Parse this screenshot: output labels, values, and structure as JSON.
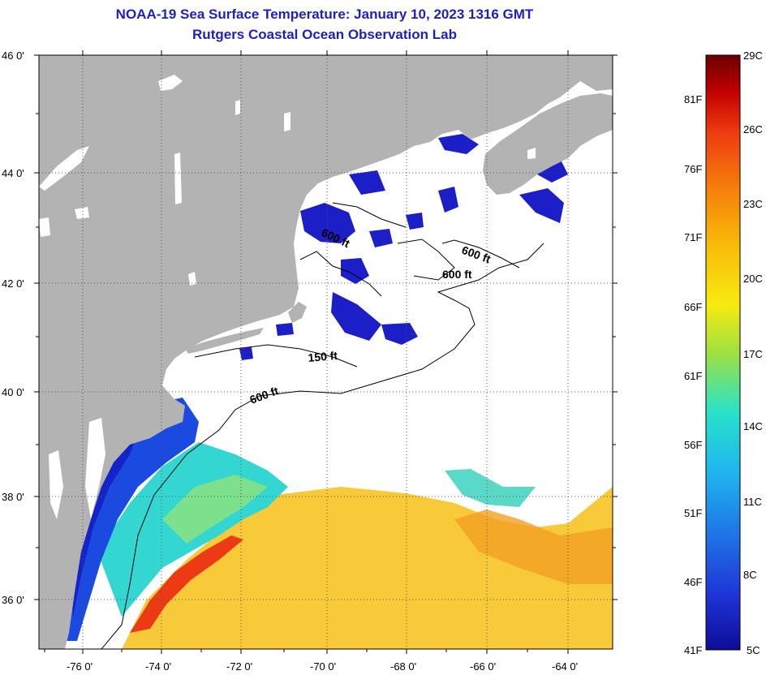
{
  "header": {
    "title": "NOAA-19 Sea Surface Temperature:  January 10, 2023 1316 GMT",
    "subtitle": "Rutgers Coastal Ocean Observation Lab"
  },
  "axes": {
    "lat_labels": [
      "46 0'",
      "44 0'",
      "42 0'",
      "40 0'",
      "38 0'",
      "36 0'"
    ],
    "lon_labels": [
      "-76 0'",
      "-74 0'",
      "-72 0'",
      "-70 0'",
      "-68 0'",
      "-66 0'",
      "-64 0'"
    ]
  },
  "contours": {
    "labels": [
      "600 ft",
      "600 ft",
      "600 ft",
      "150 ft",
      "600 ft"
    ]
  },
  "colorbar": {
    "celsius": [
      "29C",
      "26C",
      "23C",
      "20C",
      "17C",
      "14C",
      "11C",
      "8C",
      "5C"
    ],
    "fahrenheit": [
      "81F",
      "76F",
      "71F",
      "66F",
      "61F",
      "56F",
      "51F",
      "46F",
      "41F"
    ],
    "colors": [
      "#6b0000",
      "#c00000",
      "#ee3b10",
      "#f57c0c",
      "#f8bb08",
      "#f6ea10",
      "#9fe040",
      "#28e2c8",
      "#1fb6ee",
      "#1f78e6",
      "#1f33d6",
      "#0d0d98"
    ]
  },
  "map_colors": {
    "land": "#b3b3b3",
    "ocean_nodata": "#ffffff",
    "cold": "#1b33d6",
    "warm": "#f4a82a"
  }
}
